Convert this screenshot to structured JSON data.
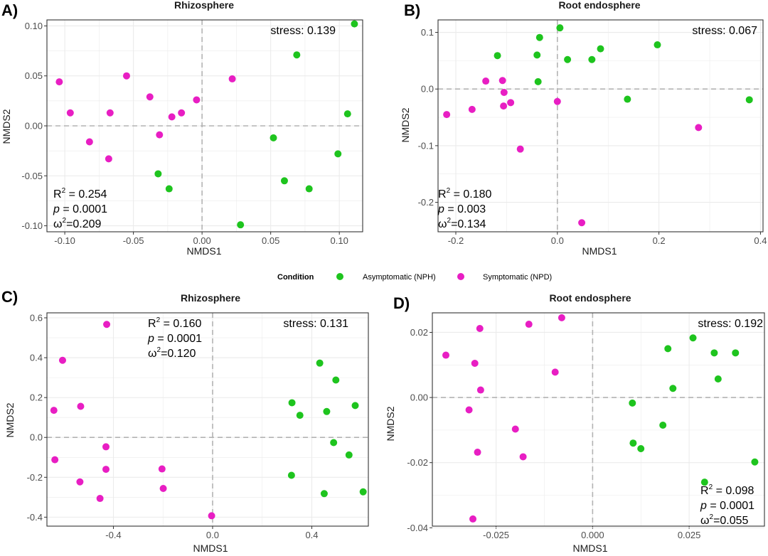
{
  "colors": {
    "asymptomatic": "#1ec41e",
    "symptomatic": "#e81ec3",
    "grid": "#ebebeb",
    "zero_line": "#b3b3b3",
    "border": "#333333"
  },
  "legend": {
    "title": "Condition",
    "items": [
      {
        "label": "Asymptomatic (NPH)",
        "key": "asymptomatic"
      },
      {
        "label": "Symptomatic (NPD)",
        "key": "symptomatic"
      }
    ]
  },
  "chart_data": [
    {
      "panel_label": "A)",
      "type": "scatter",
      "title": "Rhizosphere",
      "xlabel": "NMDS1",
      "ylabel": "NMDS2",
      "xlim": [
        -0.113,
        0.117
      ],
      "ylim": [
        -0.106,
        0.106
      ],
      "xticks": [
        -0.1,
        -0.05,
        0.0,
        0.05,
        0.1
      ],
      "xtick_labels": [
        "-0.10",
        "-0.05",
        "0.00",
        "0.05",
        "0.10"
      ],
      "yticks": [
        -0.1,
        -0.05,
        0.0,
        0.05,
        0.1
      ],
      "ytick_labels": [
        "-0.10",
        "-0.05",
        "0.00",
        "0.05",
        "0.10"
      ],
      "stress_text": "stress: 0.139",
      "stats": {
        "r2_label": "R",
        "r2_sup": "2",
        "r2_value": " = 0.254",
        "p_label": "p",
        "p_value": " =  0.0001",
        "w2_label": "ω",
        "w2_sup": "2",
        "w2_value": "=0.209"
      },
      "series": [
        {
          "name": "Asymptomatic (NPH)",
          "key": "asymptomatic",
          "points": [
            [
              0.111,
              0.102
            ],
            [
              0.069,
              0.071
            ],
            [
              0.106,
              0.012
            ],
            [
              0.052,
              -0.012
            ],
            [
              0.099,
              -0.028
            ],
            [
              -0.032,
              -0.048
            ],
            [
              -0.024,
              -0.063
            ],
            [
              0.06,
              -0.055
            ],
            [
              0.078,
              -0.063
            ],
            [
              0.028,
              -0.099
            ]
          ]
        },
        {
          "name": "Symptomatic (NPD)",
          "key": "symptomatic",
          "points": [
            [
              -0.104,
              0.044
            ],
            [
              -0.055,
              0.05
            ],
            [
              0.022,
              0.047
            ],
            [
              -0.038,
              0.029
            ],
            [
              -0.004,
              0.026
            ],
            [
              -0.096,
              0.013
            ],
            [
              -0.067,
              0.013
            ],
            [
              -0.022,
              0.009
            ],
            [
              -0.015,
              0.013
            ],
            [
              -0.082,
              -0.016
            ],
            [
              -0.031,
              -0.009
            ],
            [
              -0.068,
              -0.033
            ]
          ]
        }
      ]
    },
    {
      "panel_label": "B)",
      "type": "scatter",
      "title": "Root endosphere",
      "xlabel": "NMDS1",
      "ylabel": "NMDS2",
      "xlim": [
        -0.235,
        0.405
      ],
      "ylim": [
        -0.252,
        0.122
      ],
      "xticks": [
        -0.2,
        0.0,
        0.2,
        0.4
      ],
      "xtick_labels": [
        "-0.2",
        "0.0",
        "0.2",
        "0.4"
      ],
      "yticks": [
        -0.2,
        -0.1,
        0.0,
        0.1
      ],
      "ytick_labels": [
        "-0.2",
        "-0.1",
        "0.0",
        "0.1"
      ],
      "stress_text": "stress: 0.067",
      "stats": {
        "r2_label": "R",
        "r2_sup": "2",
        "r2_value": " = 0.180",
        "p_label": "p",
        "p_value": " =  0.003",
        "w2_label": "ω",
        "w2_sup": "2",
        "w2_value": "=0.134"
      },
      "series": [
        {
          "name": "Asymptomatic (NPH)",
          "key": "asymptomatic",
          "points": [
            [
              0.005,
              0.108
            ],
            [
              -0.035,
              0.091
            ],
            [
              -0.118,
              0.059
            ],
            [
              -0.04,
              0.06
            ],
            [
              0.02,
              0.052
            ],
            [
              0.068,
              0.052
            ],
            [
              0.085,
              0.071
            ],
            [
              0.197,
              0.078
            ],
            [
              -0.038,
              0.013
            ],
            [
              0.138,
              -0.018
            ],
            [
              0.378,
              -0.019
            ]
          ]
        },
        {
          "name": "Symptomatic (NPD)",
          "key": "symptomatic",
          "points": [
            [
              -0.141,
              0.014
            ],
            [
              -0.108,
              0.015
            ],
            [
              -0.105,
              -0.006
            ],
            [
              -0.092,
              -0.024
            ],
            [
              -0.106,
              -0.03
            ],
            [
              -0.168,
              -0.036
            ],
            [
              -0.218,
              -0.045
            ],
            [
              0.0,
              -0.022
            ],
            [
              -0.073,
              -0.106
            ],
            [
              0.278,
              -0.068
            ],
            [
              0.048,
              -0.236
            ]
          ]
        }
      ]
    },
    {
      "panel_label": "C)",
      "type": "scatter",
      "title": "Rhizosphere",
      "xlabel": "NMDS1",
      "ylabel": "NMDS2",
      "xlim": [
        -0.668,
        0.628
      ],
      "ylim": [
        -0.445,
        0.625
      ],
      "xticks": [
        -0.4,
        0.0,
        0.4
      ],
      "xtick_labels": [
        "-0.4",
        "0.0",
        "0.4"
      ],
      "yticks": [
        -0.4,
        -0.2,
        0.0,
        0.2,
        0.4,
        0.6
      ],
      "ytick_labels": [
        "-0.4",
        "-0.2",
        "0.0",
        "0.2",
        "0.4",
        "0.6"
      ],
      "stress_text": "stress: 0.131",
      "stats": {
        "r2_label": "R",
        "r2_sup": "2",
        "r2_value": " = 0.160",
        "p_label": "p",
        "p_value": " =  0.0001",
        "w2_label": "ω",
        "w2_sup": "2",
        "w2_value": "=0.120"
      },
      "series": [
        {
          "name": "Asymptomatic (NPH)",
          "key": "asymptomatic",
          "points": [
            [
              0.432,
              0.373
            ],
            [
              0.497,
              0.288
            ],
            [
              0.32,
              0.174
            ],
            [
              0.352,
              0.111
            ],
            [
              0.46,
              0.13
            ],
            [
              0.575,
              0.16
            ],
            [
              0.488,
              -0.026
            ],
            [
              0.55,
              -0.088
            ],
            [
              0.318,
              -0.19
            ],
            [
              0.45,
              -0.282
            ],
            [
              0.607,
              -0.273
            ]
          ]
        },
        {
          "name": "Symptomatic (NPD)",
          "key": "symptomatic",
          "points": [
            [
              -0.427,
              0.567
            ],
            [
              -0.605,
              0.387
            ],
            [
              -0.64,
              0.136
            ],
            [
              -0.532,
              0.156
            ],
            [
              -0.43,
              -0.047
            ],
            [
              -0.636,
              -0.112
            ],
            [
              -0.43,
              -0.16
            ],
            [
              -0.535,
              -0.223
            ],
            [
              -0.204,
              -0.158
            ],
            [
              -0.199,
              -0.256
            ],
            [
              -0.454,
              -0.306
            ],
            [
              -0.004,
              -0.393
            ]
          ]
        }
      ]
    },
    {
      "panel_label": "D)",
      "type": "scatter",
      "title": "Root endosphere",
      "xlabel": "NMDS1",
      "ylabel": "NMDS2",
      "xlim": [
        -0.0415,
        0.0445
      ],
      "ylim": [
        -0.0395,
        0.026
      ],
      "xticks": [
        -0.025,
        0.0,
        0.025
      ],
      "xtick_labels": [
        "-0.025",
        "0.000",
        "0.025"
      ],
      "yticks": [
        -0.04,
        -0.02,
        0.0,
        0.02
      ],
      "ytick_labels": [
        "-0.04",
        "-0.02",
        "0.00",
        "0.02"
      ],
      "stress_text": "stress: 0.192",
      "stats": {
        "r2_label": "R",
        "r2_sup": "2",
        "r2_value": " = 0.098",
        "p_label": "p",
        "p_value": " =  0.0001",
        "w2_label": "ω",
        "w2_sup": "2",
        "w2_value": "=0.055"
      },
      "series": [
        {
          "name": "Asymptomatic (NPH)",
          "key": "asymptomatic",
          "points": [
            [
              0.026,
              0.0183
            ],
            [
              0.0195,
              0.015
            ],
            [
              0.0315,
              0.0137
            ],
            [
              0.037,
              0.0137
            ],
            [
              0.0325,
              0.0057
            ],
            [
              0.0208,
              0.0028
            ],
            [
              0.0103,
              -0.0017
            ],
            [
              0.0182,
              -0.0085
            ],
            [
              0.0105,
              -0.014
            ],
            [
              0.0125,
              -0.0157
            ],
            [
              0.029,
              -0.026
            ],
            [
              0.042,
              -0.0198
            ]
          ]
        },
        {
          "name": "Symptomatic (NPD)",
          "key": "symptomatic",
          "points": [
            [
              -0.008,
              0.0245
            ],
            [
              -0.0165,
              0.0225
            ],
            [
              -0.0292,
              0.0212
            ],
            [
              -0.038,
              0.013
            ],
            [
              -0.0305,
              0.0105
            ],
            [
              -0.0097,
              0.0078
            ],
            [
              -0.029,
              0.0023
            ],
            [
              -0.032,
              -0.0038
            ],
            [
              -0.02,
              -0.0097
            ],
            [
              -0.0298,
              -0.0168
            ],
            [
              -0.018,
              -0.0182
            ],
            [
              -0.031,
              -0.0373
            ]
          ]
        }
      ]
    }
  ]
}
